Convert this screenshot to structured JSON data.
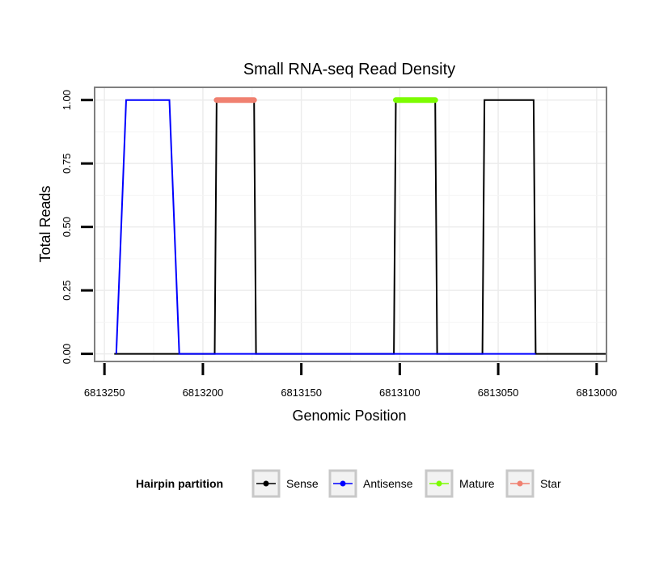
{
  "chart_data": {
    "type": "line",
    "title": "Small RNA-seq Read Density",
    "xlabel": "Genomic Position",
    "ylabel": "Total Reads",
    "x_reversed": true,
    "xlim": [
      6813255,
      6812995
    ],
    "ylim": [
      -0.03,
      1.05
    ],
    "xticks": [
      6813250,
      6813200,
      6813150,
      6813100,
      6813050,
      6813000
    ],
    "xtick_labels": [
      "6813250",
      "6813200",
      "6813150",
      "6813100",
      "6813050",
      "6813000"
    ],
    "yticks": [
      0.0,
      0.25,
      0.5,
      0.75,
      1.0
    ],
    "ytick_labels": [
      "0.00",
      "0.25",
      "0.50",
      "0.75",
      "1.00"
    ],
    "grid": true,
    "legend_position": "bottom",
    "legend": {
      "title": "Hairpin partition",
      "entries": [
        {
          "name": "Sense",
          "color": "#000000"
        },
        {
          "name": "Antisense",
          "color": "#0000ff"
        },
        {
          "name": "Mature",
          "color": "#7cfc00"
        },
        {
          "name": "Star",
          "color": "#f08070"
        }
      ]
    },
    "series": [
      {
        "name": "Sense",
        "color": "#000000",
        "points": [
          [
            6813245,
            0
          ],
          [
            6813194,
            0
          ],
          [
            6813193,
            1
          ],
          [
            6813174,
            1
          ],
          [
            6813173,
            0
          ],
          [
            6813103,
            0
          ],
          [
            6813102,
            1
          ],
          [
            6813082,
            1
          ],
          [
            6813081,
            0
          ],
          [
            6813058,
            0
          ],
          [
            6813057,
            1
          ],
          [
            6813032,
            1
          ],
          [
            6813031,
            0
          ],
          [
            6812995,
            0
          ]
        ]
      },
      {
        "name": "Antisense",
        "color": "#0000ff",
        "points": [
          [
            6813244,
            0
          ],
          [
            6813239,
            1
          ],
          [
            6813217,
            1
          ],
          [
            6813212,
            0
          ],
          [
            6813194,
            0
          ],
          [
            6813173,
            0
          ],
          [
            6813103,
            0
          ],
          [
            6813081,
            0
          ],
          [
            6813058,
            0
          ],
          [
            6813031,
            0
          ]
        ]
      },
      {
        "name": "Mature",
        "color": "#7cfc00",
        "points": [
          [
            6813102,
            1
          ],
          [
            6813082,
            1
          ]
        ]
      },
      {
        "name": "Star",
        "color": "#f08070",
        "points": [
          [
            6813193,
            1
          ],
          [
            6813174,
            1
          ]
        ]
      }
    ]
  }
}
